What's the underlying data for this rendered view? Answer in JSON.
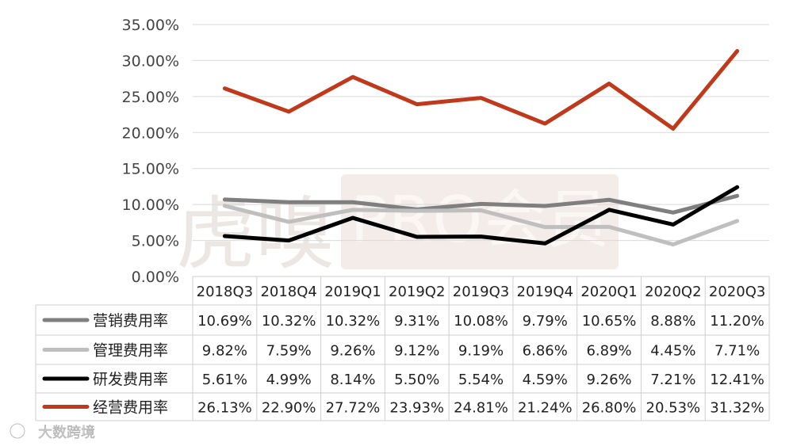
{
  "chart_data": {
    "type": "line",
    "categories": [
      "2018Q3",
      "2018Q4",
      "2019Q1",
      "2019Q2",
      "2019Q3",
      "2019Q4",
      "2020Q1",
      "2020Q2",
      "2020Q3"
    ],
    "y_ticks": [
      "0.00%",
      "5.00%",
      "10.00%",
      "15.00%",
      "20.00%",
      "25.00%",
      "30.00%",
      "35.00%"
    ],
    "ylim": [
      0,
      35
    ],
    "grid": true,
    "legend": "data-table below chart",
    "series": [
      {
        "name": "营销费用率",
        "color": "#7f7f7f",
        "values": [
          10.69,
          10.32,
          10.32,
          9.31,
          10.08,
          9.79,
          10.65,
          8.88,
          11.2
        ],
        "labels": [
          "10.69%",
          "10.32%",
          "10.32%",
          "9.31%",
          "10.08%",
          "9.79%",
          "10.65%",
          "8.88%",
          "11.20%"
        ]
      },
      {
        "name": "管理费用率",
        "color": "#bfbfbf",
        "values": [
          9.82,
          7.59,
          9.26,
          9.12,
          9.19,
          6.86,
          6.89,
          4.45,
          7.71
        ],
        "labels": [
          "9.82%",
          "7.59%",
          "9.26%",
          "9.12%",
          "9.19%",
          "6.86%",
          "6.89%",
          "4.45%",
          "7.71%"
        ]
      },
      {
        "name": "研发费用率",
        "color": "#000000",
        "values": [
          5.61,
          4.99,
          8.14,
          5.5,
          5.54,
          4.59,
          9.26,
          7.21,
          12.41
        ],
        "labels": [
          "5.61%",
          "4.99%",
          "8.14%",
          "5.50%",
          "5.54%",
          "4.59%",
          "9.26%",
          "7.21%",
          "12.41%"
        ]
      },
      {
        "name": "经营费用率",
        "color": "#c0391b",
        "values": [
          26.13,
          22.9,
          27.72,
          23.93,
          24.81,
          21.24,
          26.8,
          20.53,
          31.32
        ],
        "labels": [
          "26.13%",
          "22.90%",
          "27.72%",
          "23.93%",
          "24.81%",
          "21.24%",
          "26.80%",
          "20.53%",
          "31.32%"
        ]
      }
    ]
  },
  "watermark": {
    "brand": "虎嗅",
    "sub": "PRO会员",
    "footer": "大数跨境"
  }
}
